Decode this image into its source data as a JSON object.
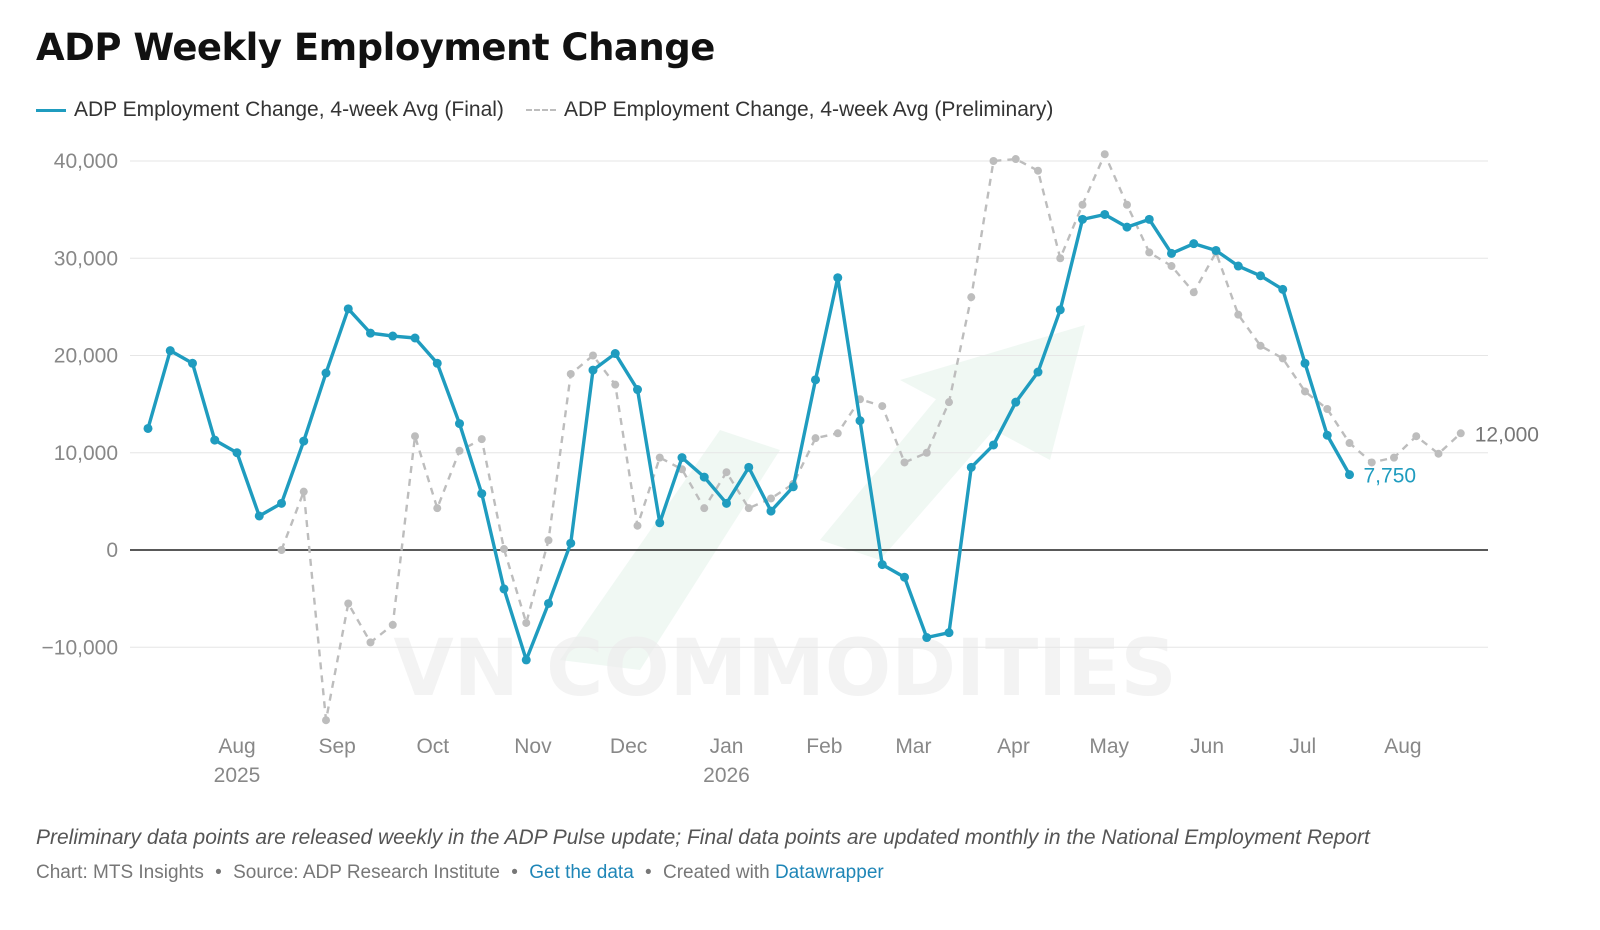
{
  "title": "ADP Weekly Employment Change",
  "legend": {
    "final": "ADP Employment Change, 4-week Avg (Final)",
    "preliminary": "ADP Employment Change, 4-week Avg (Preliminary)"
  },
  "footnote": "Preliminary data points are released weekly in the ADP Pulse update; Final data points are updated monthly in the National Employment Report",
  "credits": {
    "chart": "Chart: MTS Insights",
    "source": "Source: ADP Research Institute",
    "get_data": "Get the data",
    "created_with": "Created with",
    "tool": "Datawrapper",
    "separator": "•"
  },
  "watermark": "VN COMMODITIES",
  "colors": {
    "final": "#1f9cbf",
    "preliminary": "#bdbdbd",
    "watermark_arrow": "#e3f3ea",
    "watermark_text": "#eeeeee"
  },
  "chart_data": {
    "type": "line",
    "title": "ADP Weekly Employment Change",
    "ylim": [
      -17000,
      40000
    ],
    "y_ticks": [
      40000,
      30000,
      20000,
      10000,
      0,
      -10000
    ],
    "y_tick_labels": [
      "40,000",
      "30,000",
      "20,000",
      "10,000",
      "0",
      "−10,000"
    ],
    "x_tick_labels": [
      {
        "week": 4,
        "lines": [
          "Aug",
          "2025"
        ]
      },
      {
        "week": 8.5,
        "lines": [
          "Sep"
        ]
      },
      {
        "week": 12.8,
        "lines": [
          "Oct"
        ]
      },
      {
        "week": 17.3,
        "lines": [
          "Nov"
        ]
      },
      {
        "week": 21.6,
        "lines": [
          "Dec"
        ]
      },
      {
        "week": 26,
        "lines": [
          "Jan",
          "2026"
        ]
      },
      {
        "week": 30.4,
        "lines": [
          "Feb"
        ]
      },
      {
        "week": 34.4,
        "lines": [
          "Mar"
        ]
      },
      {
        "week": 38.9,
        "lines": [
          "Apr"
        ]
      },
      {
        "week": 43.2,
        "lines": [
          "May"
        ]
      },
      {
        "week": 47.6,
        "lines": [
          "Jun"
        ]
      },
      {
        "week": 51.9,
        "lines": [
          "Jul"
        ]
      },
      {
        "week": 56.4,
        "lines": [
          "Aug"
        ]
      }
    ],
    "grid": true,
    "legend_position": "top-left",
    "series": [
      {
        "name": "ADP Employment Change, 4-week Avg (Final)",
        "style": "solid",
        "start_week": 0,
        "values": [
          12500,
          20500,
          19200,
          11300,
          10000,
          3500,
          4800,
          11200,
          18200,
          24800,
          22300,
          22000,
          21800,
          19200,
          13000,
          5800,
          -4000,
          -11300,
          -5500,
          700,
          18500,
          20200,
          16500,
          2800,
          9500,
          7500,
          4800,
          8500,
          4000,
          6500,
          17500,
          28000,
          13300,
          -1500,
          -2800,
          -9000,
          -8500,
          8500,
          10800,
          15200,
          18300,
          24700,
          34000,
          34500,
          33200,
          34000,
          30500,
          31500,
          30800,
          29200,
          28200,
          26800,
          19200,
          11800,
          7750
        ],
        "end_label": "7,750"
      },
      {
        "name": "ADP Employment Change, 4-week Avg (Preliminary)",
        "style": "dashed",
        "start_week": 6,
        "values": [
          0,
          6000,
          -17500,
          -5500,
          -9500,
          -7700,
          11700,
          4300,
          10200,
          11400,
          100,
          -7500,
          1000,
          18100,
          20000,
          17000,
          2500,
          9500,
          8300,
          4300,
          8000,
          4300,
          5300,
          6800,
          11500,
          12000,
          15500,
          14800,
          9000,
          10000,
          15200,
          26000,
          40000,
          40200,
          39000,
          30000,
          35500,
          40700,
          35500,
          30600,
          29200,
          26500,
          30600,
          24200,
          21000,
          19700,
          16300,
          14500,
          11000,
          9000,
          9500,
          11700,
          9900,
          12000
        ],
        "end_label": "12,000"
      }
    ]
  }
}
